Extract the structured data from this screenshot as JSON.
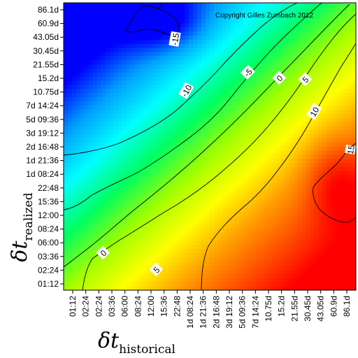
{
  "chart_data": {
    "type": "heatmap",
    "title": "",
    "copyright": "Copyright Gilles Zumbach 2012",
    "xlabel": {
      "symbol": "δt",
      "subscript": "historical"
    },
    "ylabel": {
      "symbol": "δt",
      "subscript": "realized"
    },
    "x_tick_labels": [
      "01:12",
      "02:24",
      "02:24",
      "03:36",
      "06:00",
      "08:24",
      "12:00",
      "15:36",
      "22:48",
      "1d 08:24",
      "1d 21:36",
      "2d 16:48",
      "3d 19:12",
      "5d 09:36",
      "7d 14:24",
      "10.75d",
      "15.2d",
      "21.55d",
      "30.45d",
      "43.05d",
      "60.9d",
      "86.1d"
    ],
    "y_tick_labels_bottom_to_top": [
      "01:12",
      "02:24",
      "03:36",
      "06:00",
      "08:24",
      "12:00",
      "15:36",
      "22:48",
      "1d 08:24",
      "1d 21:36",
      "2d 16:48",
      "3d 19:12",
      "5d 09:36",
      "7d 14:24",
      "10.75d",
      "15.2d",
      "21.55d",
      "30.45d",
      "43.05d",
      "60.9d",
      "86.1d"
    ],
    "contour_levels": [
      -15,
      -10,
      -5,
      0,
      5,
      10,
      15
    ],
    "contour_labels": [
      "-15",
      "-10",
      "-5",
      "0",
      "5",
      "10",
      "15",
      "-5",
      "0",
      "5"
    ],
    "colormap": [
      "#0000ff",
      "#00a0ff",
      "#00ffff",
      "#00ff60",
      "#a0ff00",
      "#ffff00",
      "#ffa000",
      "#ff5000",
      "#ff0000"
    ],
    "value_range": [
      -20,
      20
    ],
    "grid": false,
    "legend": "none"
  }
}
